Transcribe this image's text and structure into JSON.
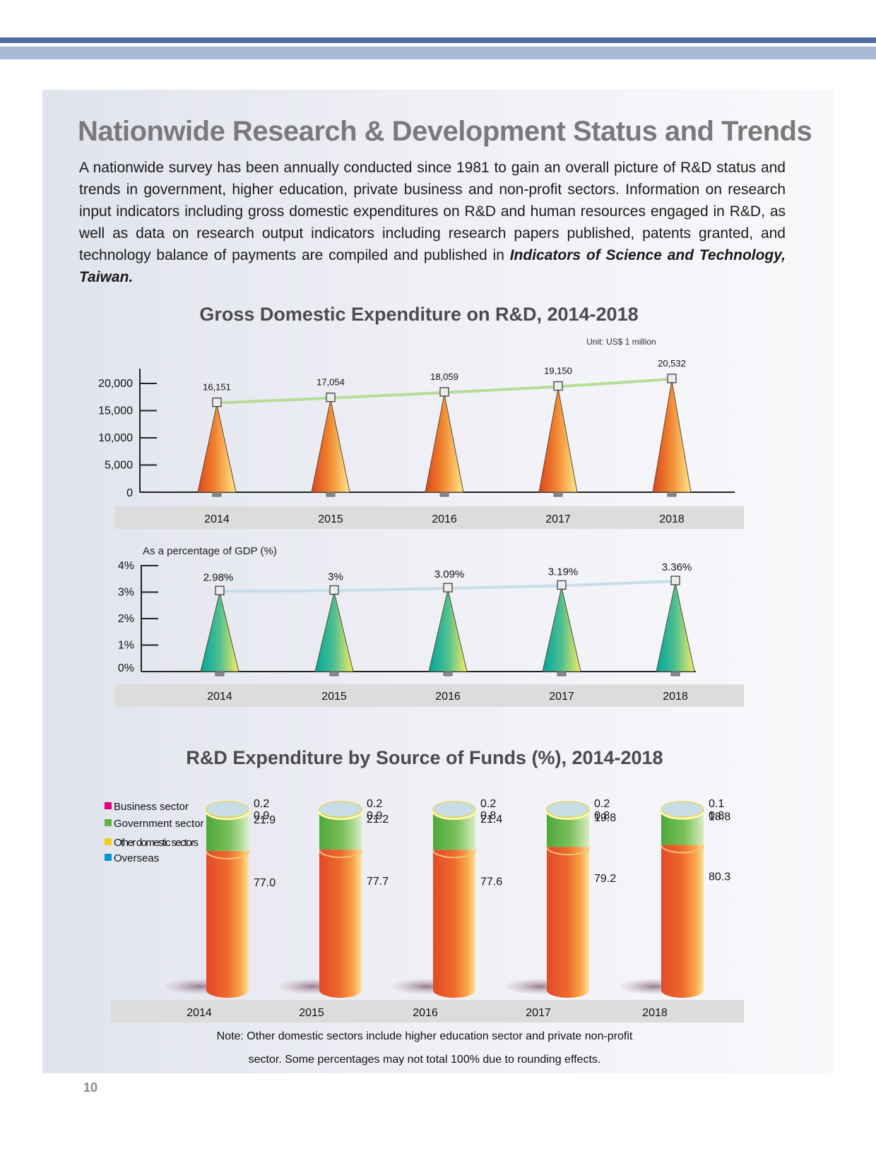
{
  "page": {
    "title": "Nationwide Research & Development Status and Trends",
    "intro_text": "A nationwide survey has been annually conducted since 1981 to gain an overall picture of R&D status and trends in government, higher education, private business and non-profit sectors. Information on research input indicators including gross domestic expenditures on R&D and human resources engaged in R&D, as well as data on research output indicators including research papers published, patents granted, and technology balance of payments are compiled and published in ",
    "intro_book": "Indicators of Science and Technology, Taiwan.",
    "page_number": "10"
  },
  "colors": {
    "cone_orange_dark": "#e0461f",
    "cone_orange_light": "#ffe37a",
    "cone_teal": "#00a99d",
    "cone_yellow": "#f4ec5c",
    "trend_green": "#b6dc96",
    "trend_blue": "#c7dde7",
    "business": "#e5007f",
    "government": "#5fb342",
    "other_domestic": "#ecd21a",
    "overseas": "#0098d4",
    "axis_band": "#dcdcdc"
  },
  "chart_data": [
    {
      "type": "bar",
      "title": "Gross Domestic Expenditure on R&D, 2014-2018",
      "unit_label": "Unit: US$ 1 million",
      "categories": [
        "2014",
        "2015",
        "2016",
        "2017",
        "2018"
      ],
      "values": [
        16151,
        17054,
        18059,
        19150,
        20532
      ],
      "value_labels": [
        "16,151",
        "17,054",
        "18,059",
        "19,150",
        "20,532"
      ],
      "y_ticks": [
        0,
        5000,
        10000,
        15000,
        20000
      ],
      "y_tick_labels": [
        "0",
        "5,000",
        "10,000",
        "15,000",
        "20,000"
      ],
      "ylim": [
        0,
        20000
      ],
      "grid": false
    },
    {
      "type": "bar",
      "title": "As a percentage of GDP (%)",
      "categories": [
        "2014",
        "2015",
        "2016",
        "2017",
        "2018"
      ],
      "values": [
        2.98,
        3.0,
        3.09,
        3.19,
        3.36
      ],
      "value_labels": [
        "2.98%",
        "3%",
        "3.09%",
        "3.19%",
        "3.36%"
      ],
      "y_ticks": [
        0,
        1,
        2,
        3,
        4
      ],
      "y_tick_labels": [
        "0%",
        "1%",
        "2%",
        "3%",
        "4%"
      ],
      "ylim": [
        0,
        4
      ],
      "grid": false
    },
    {
      "type": "bar",
      "stacked": true,
      "title": "R&D Expenditure by Source of Funds (%), 2014-2018",
      "categories": [
        "2014",
        "2015",
        "2016",
        "2017",
        "2018"
      ],
      "series": [
        {
          "name": "Business sector",
          "values": [
            77.0,
            77.7,
            77.6,
            79.2,
            80.3
          ],
          "labels": [
            "77.0",
            "77.7",
            "77.6",
            "79.2",
            "80.3"
          ]
        },
        {
          "name": "Government sector",
          "values": [
            21.9,
            21.2,
            21.4,
            19.8,
            18.8
          ],
          "labels": [
            "21.9",
            "21.2",
            "21.4",
            "19.8",
            "18.8"
          ]
        },
        {
          "name": "Other domestic sectors",
          "values": [
            0.9,
            0.9,
            0.8,
            0.8,
            0.8
          ],
          "labels": [
            "0.9",
            "0.9",
            "0.8",
            "0.8",
            "0.8"
          ]
        },
        {
          "name": "Overseas",
          "values": [
            0.2,
            0.2,
            0.2,
            0.2,
            0.1
          ],
          "labels": [
            "0.2",
            "0.2",
            "0.2",
            "0.2",
            "0.1"
          ]
        }
      ],
      "legend": "top-left",
      "note_lines": [
        "Note: Other domestic sectors include higher education sector and private non-profit",
        "sector. Some percentages may not total 100% due to rounding effects."
      ]
    }
  ]
}
